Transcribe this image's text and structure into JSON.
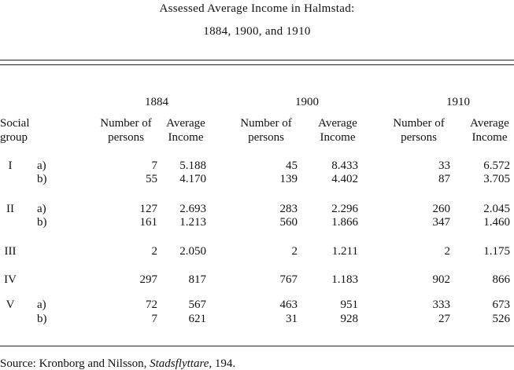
{
  "title": [
    "Assessed Average Income in Halmstad:",
    "1884, 1900, and 1910"
  ],
  "table": {
    "row_header": [
      "Social",
      "group"
    ],
    "years": [
      "1884",
      "1900",
      "1910"
    ],
    "column_headers": [
      [
        "Number of",
        "persons"
      ],
      [
        "Average",
        "Income"
      ]
    ],
    "rows": [
      {
        "group": "I",
        "sub": "a)",
        "cells": [
          "7",
          "5.188",
          "45",
          "8.433",
          "33",
          "6.572"
        ]
      },
      {
        "sub": "b)",
        "cells": [
          "55",
          "4.170",
          "139",
          "4.402",
          "87",
          "3.705"
        ]
      },
      {
        "group": "II",
        "sub": "a)",
        "cells": [
          "127",
          "2.693",
          "283",
          "2.296",
          "260",
          "2.045"
        ]
      },
      {
        "sub": "b)",
        "cells": [
          "161",
          "1.213",
          "560",
          "1.866",
          "347",
          "1.460"
        ]
      },
      {
        "group": "III",
        "cells": [
          "2",
          "2.050",
          "2",
          "1.211",
          "2",
          "1.175"
        ]
      },
      {
        "group": "IV",
        "cells": [
          "297",
          "817",
          "767",
          "1.183",
          "902",
          "866"
        ]
      },
      {
        "group": "V",
        "sub": "a)",
        "cells": [
          "72",
          "567",
          "463",
          "951",
          "333",
          "673"
        ]
      },
      {
        "sub": "b)",
        "cells": [
          "7",
          "621",
          "31",
          "928",
          "27",
          "526"
        ]
      }
    ]
  },
  "source": {
    "text": "Source: Kronborg and Nilsson, ",
    "work": "Stadsflyttare",
    "pages": ", 194."
  }
}
